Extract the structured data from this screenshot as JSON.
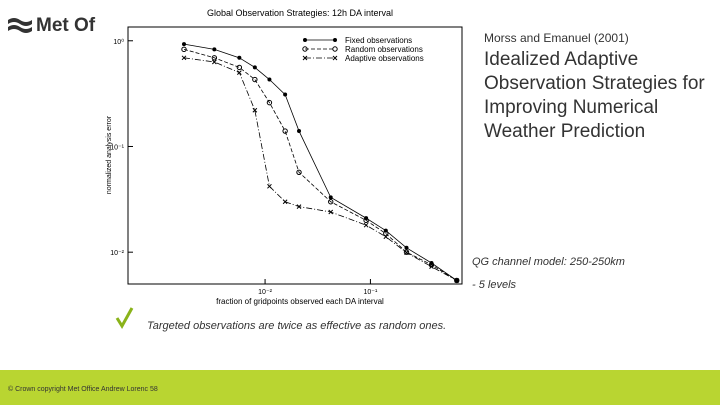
{
  "slide": {
    "logo": "Met Of",
    "citation": "Morss and Emanuel (2001)",
    "heading": "Idealized Adaptive Observation Strategies for Improving Numerical Weather Prediction",
    "note_1": "QG channel model: 250-250km",
    "note_2": "- 5 levels",
    "bullet": "Targeted observations are twice as effective as random ones.",
    "footer": "© Crown copyright   Met Office  Andrew Lorenc  58"
  },
  "chart_data": {
    "type": "line",
    "title": "Global Observation Strategies:  12h DA interval",
    "x_label": "fraction of gridpoints observed each DA interval",
    "y_label": "normalized analysis error",
    "xscale": "log",
    "yscale": "log",
    "xlim": [
      0.0005,
      0.74
    ],
    "ylim": [
      0.005,
      1.35
    ],
    "xticks": [
      {
        "value": 0.01,
        "label": "10⁻²"
      },
      {
        "value": 0.1,
        "label": "10⁻¹"
      }
    ],
    "yticks": [
      {
        "value": 0.01,
        "label": "10⁻²"
      },
      {
        "value": 0.1,
        "label": "10⁻¹"
      },
      {
        "value": 1,
        "label": "10⁰"
      }
    ],
    "legend": "upper right",
    "x": [
      0.0017,
      0.0033,
      0.0057,
      0.008,
      0.011,
      0.0155,
      0.021,
      0.042,
      0.091,
      0.14,
      0.22,
      0.38,
      0.66
    ],
    "series": [
      {
        "name": "Fixed observations",
        "color": "#000000",
        "values": [
          0.93,
          0.83,
          0.69,
          0.56,
          0.43,
          0.31,
          0.14,
          0.033,
          0.021,
          0.016,
          0.011,
          0.0079,
          0.0054
        ]
      },
      {
        "name": "Random observations",
        "color": "#000000",
        "values": [
          0.83,
          0.69,
          0.56,
          0.43,
          0.26,
          0.14,
          0.057,
          0.03,
          0.02,
          0.015,
          0.01,
          0.0076,
          0.0054
        ]
      },
      {
        "name": "Adaptive observations",
        "color": "#000000",
        "values": [
          0.69,
          0.63,
          0.5,
          0.22,
          0.042,
          0.03,
          0.027,
          0.024,
          0.018,
          0.014,
          0.0099,
          0.0073,
          0.0054
        ]
      }
    ]
  }
}
